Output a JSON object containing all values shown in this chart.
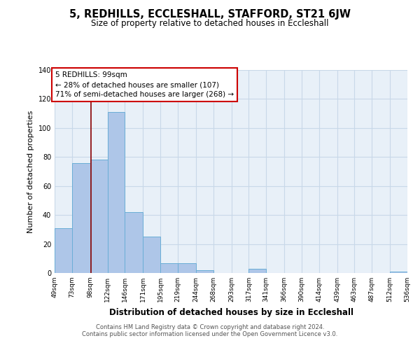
{
  "title": "5, REDHILLS, ECCLESHALL, STAFFORD, ST21 6JW",
  "subtitle": "Size of property relative to detached houses in Eccleshall",
  "xlabel": "Distribution of detached houses by size in Eccleshall",
  "ylabel": "Number of detached properties",
  "bar_color": "#aec6e8",
  "bar_edge_color": "#6aaed6",
  "background_color": "#ffffff",
  "plot_bg_color": "#e8f0f8",
  "grid_color": "#c8d8e8",
  "vline_x": 99,
  "vline_color": "#8b0000",
  "annotation_title": "5 REDHILLS: 99sqm",
  "annotation_line1": "← 28% of detached houses are smaller (107)",
  "annotation_line2": "71% of semi-detached houses are larger (268) →",
  "annotation_box_color": "#ffffff",
  "annotation_box_edge": "#cc0000",
  "bin_edges": [
    49,
    73,
    98,
    122,
    146,
    171,
    195,
    219,
    244,
    268,
    293,
    317,
    341,
    366,
    390,
    414,
    439,
    463,
    487,
    512,
    536
  ],
  "bin_labels": [
    "49sqm",
    "73sqm",
    "98sqm",
    "122sqm",
    "146sqm",
    "171sqm",
    "195sqm",
    "219sqm",
    "244sqm",
    "268sqm",
    "293sqm",
    "317sqm",
    "341sqm",
    "366sqm",
    "390sqm",
    "414sqm",
    "439sqm",
    "463sqm",
    "487sqm",
    "512sqm",
    "536sqm"
  ],
  "counts": [
    31,
    76,
    78,
    111,
    42,
    25,
    7,
    7,
    2,
    0,
    0,
    3,
    0,
    0,
    0,
    0,
    0,
    0,
    0,
    1
  ],
  "ylim": [
    0,
    140
  ],
  "yticks": [
    0,
    20,
    40,
    60,
    80,
    100,
    120,
    140
  ],
  "footer1": "Contains HM Land Registry data © Crown copyright and database right 2024.",
  "footer2": "Contains public sector information licensed under the Open Government Licence v3.0."
}
